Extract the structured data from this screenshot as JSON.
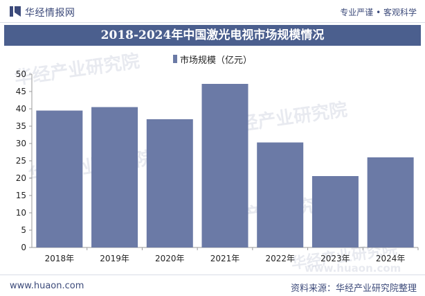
{
  "header": {
    "brand": "华经情报网",
    "tagline": "专业严谨 • 客观科学"
  },
  "footer": {
    "url": "www.huaon.com",
    "source": "资料来源：华经产业研究院整理"
  },
  "watermark": {
    "text": "华经产业研究院",
    "url": "www.huaon.com"
  },
  "colors": {
    "bar": "#6b7aa6",
    "banner": "#4b5f8e",
    "brand": "#3c4a7a"
  },
  "chart_data": {
    "type": "bar",
    "title": "2018-2024年中国激光电视市场规模情况",
    "categories": [
      "2018年",
      "2019年",
      "2020年",
      "2021年",
      "2022年",
      "2023年",
      "2024年"
    ],
    "series": [
      {
        "name": "市场规模（亿元）",
        "values": [
          39.5,
          40.5,
          37.0,
          47.2,
          30.3,
          20.6,
          26.0
        ]
      }
    ],
    "ylim": [
      0,
      50
    ],
    "yticks": [
      "0",
      "5",
      "10",
      "15",
      "20",
      "25",
      "30",
      "35",
      "40",
      "45",
      "50"
    ],
    "ytick_values": [
      0,
      5,
      10,
      15,
      20,
      25,
      30,
      35,
      40,
      45,
      50
    ],
    "grid": false,
    "legend_position": "top-center"
  }
}
